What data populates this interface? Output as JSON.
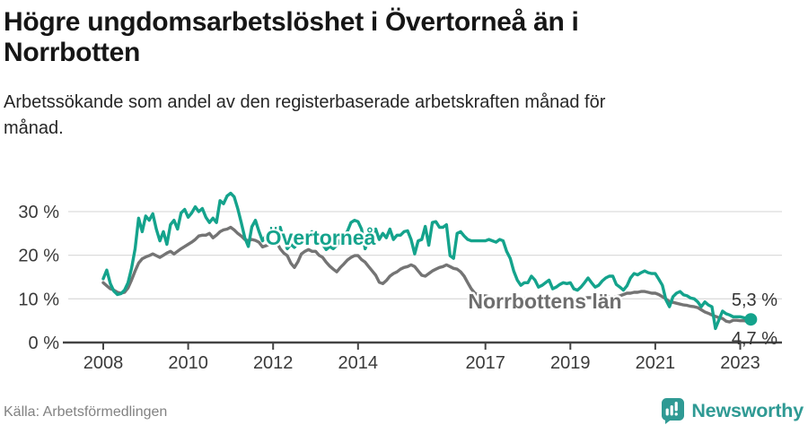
{
  "header": {
    "title_lines": [
      "Högre ungdomsarbetslöshet i Övertorneå än i",
      "Norrbotten"
    ],
    "subtitle_lines": [
      "Arbetssökande som andel av den registerbaserade arbetskraften månad för",
      "månad."
    ]
  },
  "footer": {
    "source": "Källa: Arbetsförmedlingen",
    "brand": "Newsworthy",
    "brand_icon": "newsworthy-speech-bubble-bar-chart-icon"
  },
  "colors": {
    "overtornea": "#14A38C",
    "norrbotten": "#747474",
    "norrbotten_label": "#6E6E6E",
    "axis": "#444444",
    "grid": "#DCDCDC",
    "tick_label": "#3A3A3A",
    "annotation": "#333333",
    "brand_teal": "#2F9A94"
  },
  "chart_data": {
    "type": "line",
    "start_year": 2008,
    "months_per_point": 1,
    "x_ticks": [
      2008,
      2010,
      2012,
      2014,
      2017,
      2019,
      2021,
      2023
    ],
    "x_tick_labels": [
      "2008",
      "2010",
      "2012",
      "2014",
      "2017",
      "2019",
      "2021",
      "2023"
    ],
    "y_tick_values": [
      0,
      10,
      20,
      30
    ],
    "y_tick_labels": [
      "0 %",
      "10 %",
      "20 %",
      "30 %"
    ],
    "ylim": [
      0,
      36
    ],
    "grid": "horizontal-only",
    "legend_position": "inline-labels",
    "series": [
      {
        "name": "Övertorneå",
        "color": "#14A38C",
        "end_label": "5,3 %",
        "end_value": 5.3,
        "values": [
          14.6,
          16.6,
          13.5,
          11.8,
          11.0,
          11.2,
          12.0,
          13.7,
          17.0,
          21.5,
          28.5,
          25.4,
          29.0,
          28.0,
          29.5,
          26.0,
          23.3,
          25.4,
          22.5,
          27.0,
          28.0,
          26.0,
          29.7,
          30.5,
          28.7,
          29.7,
          31.1,
          30.0,
          30.7,
          28.7,
          27.5,
          28.5,
          27.5,
          32.5,
          31.8,
          33.6,
          34.2,
          33.4,
          30.7,
          27.5,
          24.0,
          22.0,
          26.5,
          28.0,
          25.5,
          23.3,
          24.5,
          25.6,
          26.6,
          25.8,
          26.4,
          23.5,
          21.5,
          22.5,
          21.8,
          22.8,
          23.3,
          24.0,
          24.8,
          25.4,
          25.0,
          24.2,
          22.5,
          21.3,
          22.0,
          21.5,
          22.3,
          23.5,
          24.5,
          25.5,
          27.5,
          28.0,
          27.7,
          26.0,
          21.5,
          23.5,
          25.0,
          26.0,
          23.6,
          25.0,
          24.0,
          26.0,
          23.6,
          24.6,
          24.6,
          25.4,
          25.6,
          23.6,
          20.3,
          23.3,
          23.6,
          26.6,
          22.3,
          27.5,
          27.7,
          26.4,
          26.4,
          27.0,
          19.9,
          19.3,
          25.0,
          25.4,
          24.4,
          23.6,
          23.3,
          23.3,
          23.3,
          23.3,
          23.3,
          23.6,
          23.3,
          23.0,
          23.6,
          23.3,
          20.9,
          19.3,
          16.4,
          14.3,
          13.1,
          13.7,
          13.7,
          15.2,
          14.3,
          12.7,
          13.1,
          13.7,
          14.3,
          12.3,
          12.7,
          13.3,
          13.7,
          13.5,
          13.7,
          12.3,
          12.0,
          12.7,
          13.7,
          14.8,
          13.7,
          12.7,
          13.1,
          14.1,
          14.8,
          15.2,
          15.2,
          13.3,
          12.7,
          12.0,
          13.0,
          14.8,
          15.8,
          15.5,
          16.0,
          16.4,
          16.0,
          15.8,
          15.8,
          14.5,
          13.1,
          9.8,
          8.2,
          10.5,
          11.3,
          11.7,
          10.9,
          10.7,
          10.2,
          10.0,
          9.3,
          8.2,
          9.3,
          8.6,
          8.2,
          3.2,
          5.2,
          7.2,
          6.6,
          6.3,
          5.9,
          5.9,
          5.9,
          5.7,
          5.5,
          5.3
        ]
      },
      {
        "name": "Norrbottens län",
        "color": "#747474",
        "end_label": "4,7 %",
        "end_value": 4.7,
        "values": [
          13.7,
          13.0,
          12.3,
          12.0,
          11.5,
          11.3,
          11.5,
          12.5,
          14.3,
          16.4,
          18.2,
          19.2,
          19.6,
          19.9,
          20.3,
          19.9,
          19.5,
          20.0,
          20.5,
          20.9,
          20.3,
          20.9,
          21.5,
          22.0,
          22.5,
          23.0,
          23.6,
          24.4,
          24.6,
          24.6,
          25.0,
          24.0,
          24.6,
          25.4,
          25.8,
          26.0,
          26.4,
          25.8,
          25.0,
          24.4,
          23.6,
          23.3,
          23.6,
          23.4,
          23.0,
          21.9,
          22.2,
          22.5,
          22.5,
          23.0,
          21.5,
          20.5,
          19.9,
          18.2,
          17.2,
          18.5,
          20.3,
          20.9,
          21.3,
          20.9,
          20.9,
          20.0,
          19.5,
          18.4,
          17.5,
          16.8,
          16.2,
          17.2,
          18.0,
          18.9,
          19.5,
          19.9,
          19.9,
          19.0,
          18.4,
          17.4,
          16.4,
          15.4,
          13.8,
          13.5,
          14.2,
          15.2,
          15.8,
          16.2,
          16.8,
          17.2,
          17.4,
          17.8,
          17.4,
          16.4,
          15.4,
          15.2,
          15.8,
          16.4,
          16.8,
          17.2,
          17.4,
          17.8,
          17.4,
          17.0,
          16.8,
          16.2,
          15.2,
          13.7,
          12.3,
          11.3,
          10.9,
          10.7,
          10.7,
          10.5,
          10.3,
          10.0,
          9.8,
          9.6,
          9.4,
          9.6,
          9.8,
          10.0,
          10.2,
          10.0,
          10.0,
          9.8,
          9.6,
          9.4,
          9.0,
          8.6,
          9.0,
          9.4,
          9.6,
          9.8,
          10.0,
          10.0,
          10.0,
          9.8,
          10.0,
          10.0,
          10.2,
          10.3,
          10.3,
          10.2,
          10.3,
          10.5,
          10.5,
          10.5,
          10.5,
          10.5,
          10.7,
          11.0,
          11.3,
          11.3,
          11.5,
          11.5,
          11.7,
          11.7,
          11.5,
          11.3,
          11.3,
          11.0,
          10.5,
          10.0,
          9.4,
          9.2,
          9.0,
          8.8,
          8.6,
          8.5,
          8.3,
          8.2,
          8.0,
          7.5,
          7.0,
          6.7,
          6.3,
          6.0,
          5.7,
          5.5,
          4.9,
          4.7,
          5.1,
          5.1,
          5.0,
          5.0,
          4.9,
          4.7
        ]
      }
    ]
  }
}
